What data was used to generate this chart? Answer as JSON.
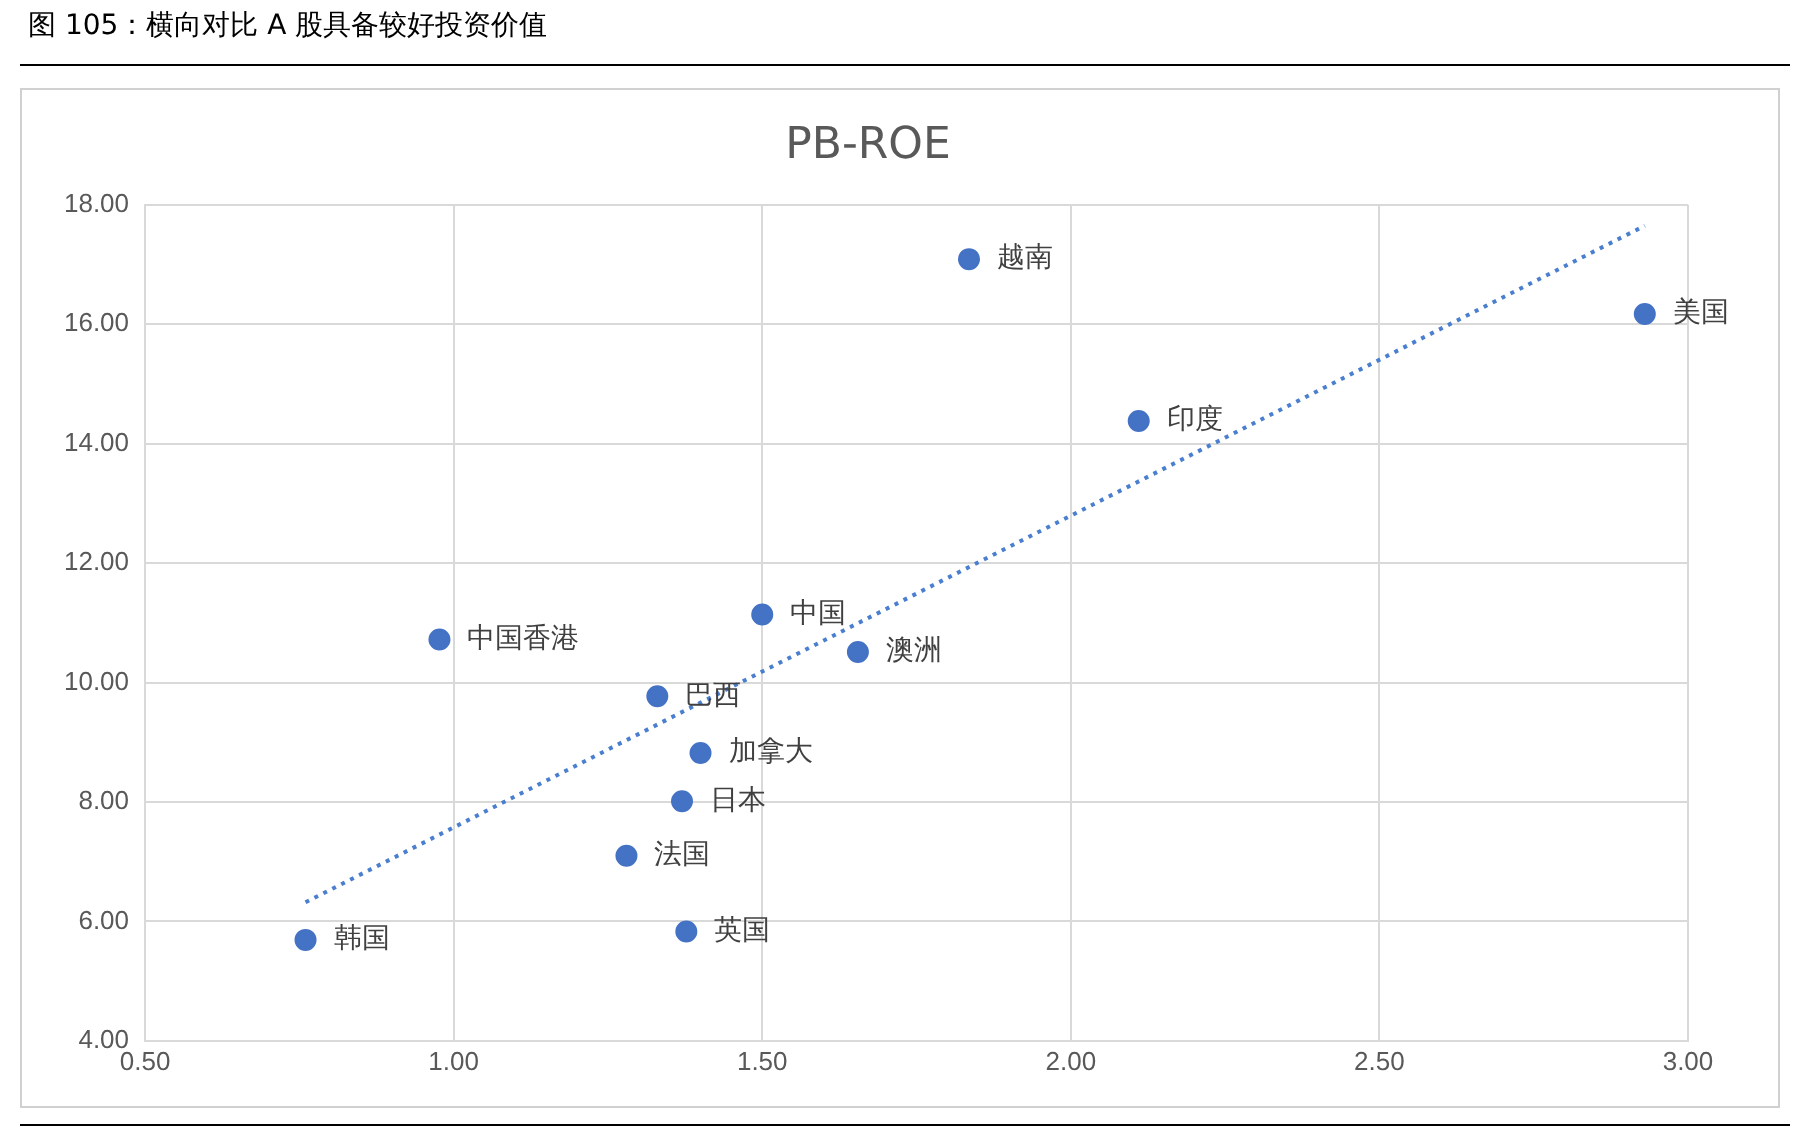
{
  "chart_data": {
    "type": "scatter",
    "title": "PB-ROE",
    "xlim": [
      0.5,
      3.0
    ],
    "xticks": [
      {
        "value": 0.5,
        "label": "0.50"
      },
      {
        "value": 1,
        "label": "1.00"
      },
      {
        "value": 1.5,
        "label": "1.50"
      },
      {
        "value": 2,
        "label": "2.00"
      },
      {
        "value": 2.5,
        "label": "2.50"
      },
      {
        "value": 3,
        "label": "3.00"
      }
    ],
    "ylim": [
      4,
      18
    ],
    "yticks": [
      {
        "value": 4,
        "label": "4.00"
      },
      {
        "value": 6,
        "label": "6.00"
      },
      {
        "value": 8,
        "label": "8.00"
      },
      {
        "value": 10,
        "label": "10.00"
      },
      {
        "value": 12,
        "label": "12.00"
      },
      {
        "value": 14,
        "label": "14.00"
      },
      {
        "value": 16,
        "label": "16.00"
      },
      {
        "value": 18,
        "label": "18.00"
      }
    ],
    "grid": true,
    "legend": false,
    "series": [
      {
        "type": "scatter",
        "color": "#4472c4",
        "marker": "circle",
        "x": [
          1.835,
          2.93,
          2.11,
          0.977,
          1.5,
          1.655,
          1.33,
          1.4,
          1.37,
          1.28,
          1.377,
          0.76
        ],
        "values": [
          17.09,
          16.17,
          14.38,
          10.72,
          11.14,
          10.51,
          9.77,
          8.82,
          8.01,
          7.1,
          5.83,
          5.69
        ]
      },
      {
        "type": "line",
        "color": "#4a7fcf",
        "marker": "none",
        "line_style": "dotted",
        "x": [
          0.76,
          2.93
        ],
        "values": [
          6.32,
          17.65
        ]
      }
    ],
    "annotations": [
      "图 105：横向对比 A 股具备较好投资价值",
      {
        "text": "越南",
        "x": 1.835,
        "y": 17.09
      },
      {
        "text": "美国",
        "x": 2.93,
        "y": 16.17
      },
      {
        "text": "印度",
        "x": 2.11,
        "y": 14.38
      },
      {
        "text": "中国香港",
        "x": 0.977,
        "y": 10.72
      },
      {
        "text": "中国",
        "x": 1.5,
        "y": 11.14
      },
      {
        "text": "澳洲",
        "x": 1.655,
        "y": 10.51
      },
      {
        "text": "巴西",
        "x": 1.33,
        "y": 9.77
      },
      {
        "text": "加拿大",
        "x": 1.4,
        "y": 8.82
      },
      {
        "text": "日本",
        "x": 1.37,
        "y": 8.01
      },
      {
        "text": "法国",
        "x": 1.28,
        "y": 7.1
      },
      {
        "text": "英国",
        "x": 1.377,
        "y": 5.83
      },
      {
        "text": "韩国",
        "x": 0.76,
        "y": 5.69
      }
    ]
  }
}
